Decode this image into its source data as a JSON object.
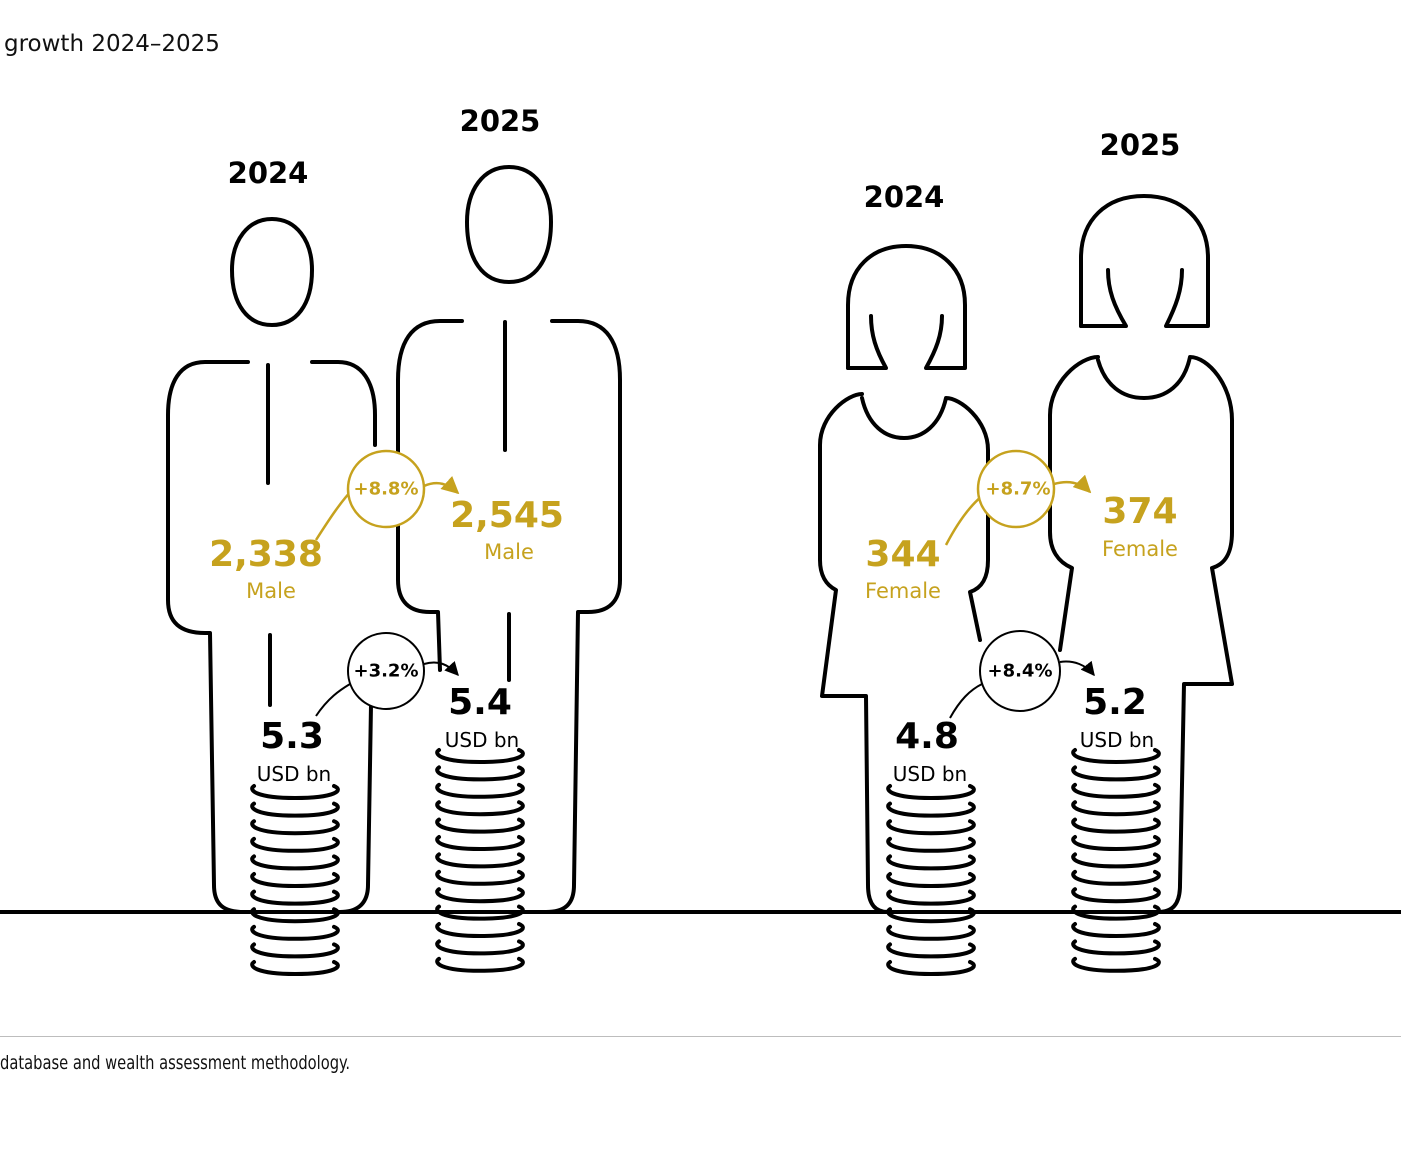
{
  "title": "growth 2024–2025",
  "footnote": "database and wealth assessment methodology.",
  "colors": {
    "gold": "#c6a21e",
    "ink": "#000000"
  },
  "groups": {
    "male": {
      "year_2024": "2024",
      "year_2025": "2025",
      "count_2024": "2,338",
      "count_2025": "2,545",
      "count_label": "Male",
      "count_growth": "+8.8%",
      "wealth_2024": "5.3",
      "wealth_2025": "5.4",
      "wealth_unit": "USD bn",
      "wealth_growth": "+3.2%"
    },
    "female": {
      "year_2024": "2024",
      "year_2025": "2025",
      "count_2024": "344",
      "count_2025": "374",
      "count_label": "Female",
      "count_growth": "+8.7%",
      "wealth_2024": "4.8",
      "wealth_2025": "5.2",
      "wealth_unit": "USD bn",
      "wealth_growth": "+8.4%"
    }
  }
}
